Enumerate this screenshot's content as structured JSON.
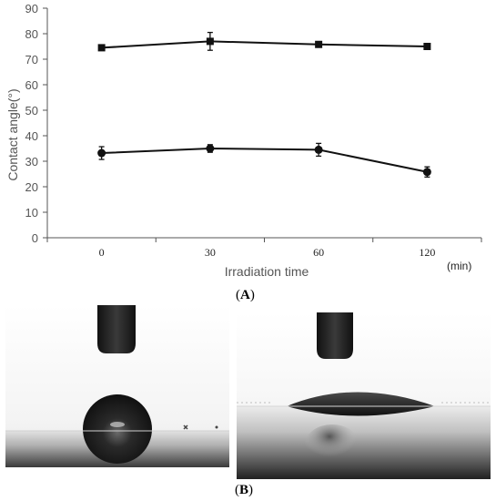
{
  "chart_data": {
    "type": "line",
    "categories": [
      "0",
      "30",
      "60",
      "120"
    ],
    "series": [
      {
        "values": [
          74.5,
          77.0,
          75.8,
          75.0
        ],
        "errors": [
          1.0,
          3.5,
          0.8,
          1.0
        ],
        "marker": "square"
      },
      {
        "values": [
          33.2,
          35.0,
          34.5,
          25.8
        ],
        "errors": [
          2.5,
          1.5,
          2.5,
          2.0
        ],
        "marker": "circle"
      }
    ],
    "ylim": [
      0,
      90
    ],
    "yticks": [
      0,
      10,
      20,
      30,
      40,
      50,
      60,
      70,
      80,
      90
    ],
    "ylabel": "Contact angle(°)",
    "xlabel": "Irradiation time",
    "xunit": "(min)",
    "line_color": "#111111",
    "axis_color": "#555555",
    "text_color": "#555555"
  },
  "panels": {
    "a_label": "(A)",
    "b_label": "(B)",
    "a_bold": "A",
    "b_bold": "B"
  }
}
